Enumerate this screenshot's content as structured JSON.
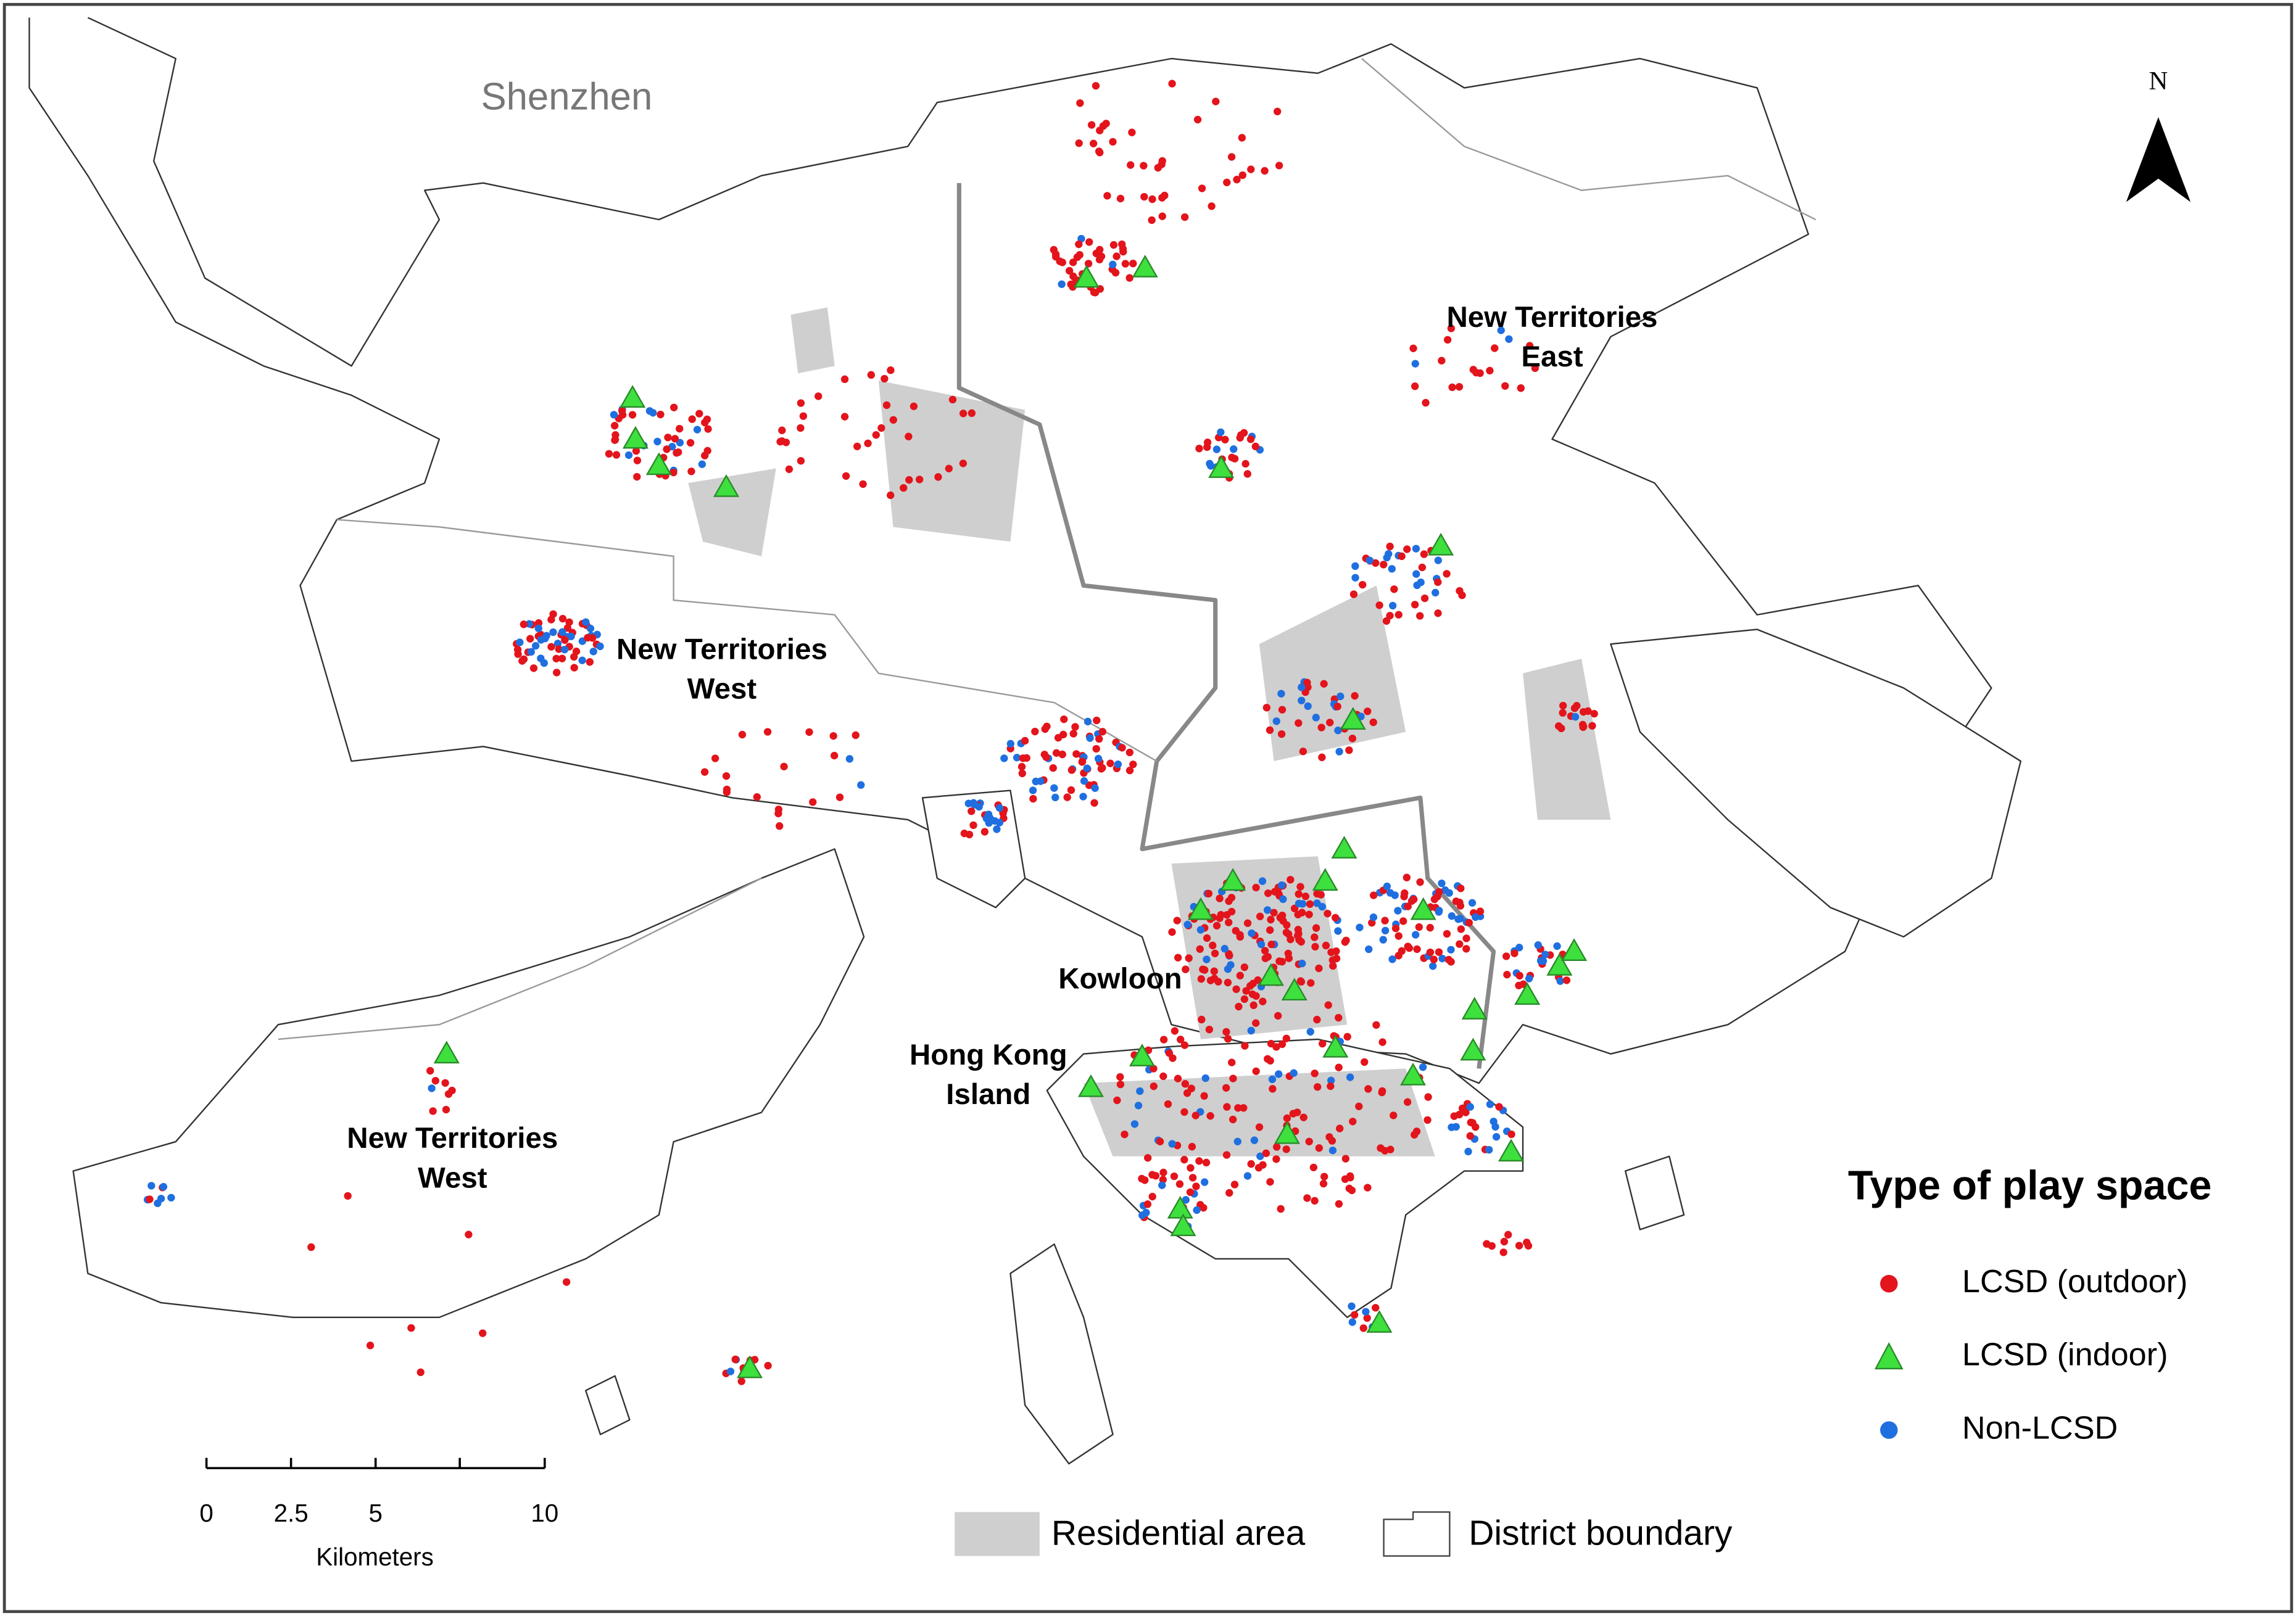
{
  "map": {
    "places": [
      {
        "lines": [
          "Shenzhen"
        ]
      },
      {
        "lines": [
          "New Territories",
          "East"
        ]
      },
      {
        "lines": [
          "New Territories",
          "West"
        ]
      },
      {
        "lines": [
          "Kowloon"
        ]
      },
      {
        "lines": [
          "Hong Kong",
          "Island"
        ]
      },
      {
        "lines": [
          "New Territories",
          "West"
        ]
      }
    ],
    "north": "N",
    "legend": {
      "title": "Type of play space",
      "items": [
        "LCSD (outdoor)",
        "LCSD (indoor)",
        "Non-LCSD"
      ]
    },
    "bottom_legend": [
      "Residential area",
      "District boundary"
    ],
    "scale_bar": {
      "ticks": [
        0,
        2.5,
        5,
        10
      ],
      "unit": "Kilometers"
    }
  }
}
